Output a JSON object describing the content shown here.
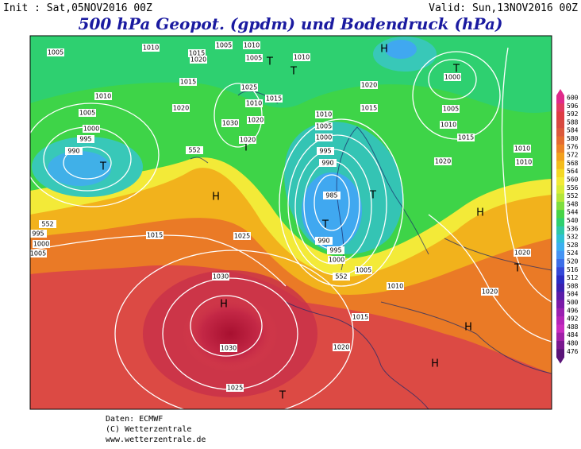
{
  "header": {
    "init": "Init : Sat,05NOV2016 00Z",
    "valid": "Valid: Sun,13NOV2016 00Z",
    "title": "500 hPa Geopot. (gpdm) und Bodendruck (hPa)"
  },
  "legend": [
    "600",
    "596",
    "592",
    "588",
    "584",
    "580",
    "576",
    "572",
    "568",
    "564",
    "560",
    "556",
    "552",
    "548",
    "544",
    "540",
    "536",
    "532",
    "528",
    "524",
    "520",
    "516",
    "512",
    "508",
    "504",
    "500",
    "496",
    "492",
    "488",
    "484",
    "480",
    "476"
  ],
  "pressure_centers": [
    "H",
    "H",
    "H",
    "H",
    "H",
    "H",
    "T",
    "T",
    "T",
    "T",
    "T",
    "T",
    "T",
    "T",
    "T"
  ],
  "isobar_labels": [
    "1005",
    "1010",
    "1015",
    "1020",
    "1005",
    "1010",
    "1005",
    "1010",
    "1015",
    "1010",
    "1005",
    "1000",
    "995",
    "990",
    "1020",
    "1025",
    "1030",
    "1020",
    "1020",
    "1015",
    "1010",
    "1020",
    "1015",
    "1010",
    "1005",
    "1000",
    "995",
    "990",
    "985",
    "990",
    "995",
    "1000",
    "1005",
    "1010",
    "1015",
    "1020",
    "1025",
    "1030",
    "1030",
    "1025",
    "1015",
    "1000",
    "1005",
    "995",
    "552",
    "552",
    "552",
    "1000",
    "1005",
    "1010",
    "1015",
    "1020",
    "1010",
    "1020",
    "1020",
    "1010"
  ],
  "footer": [
    "Daten: ECMWF",
    "(C) Wetterzentrale",
    "www.wetterzentrale.de"
  ]
}
